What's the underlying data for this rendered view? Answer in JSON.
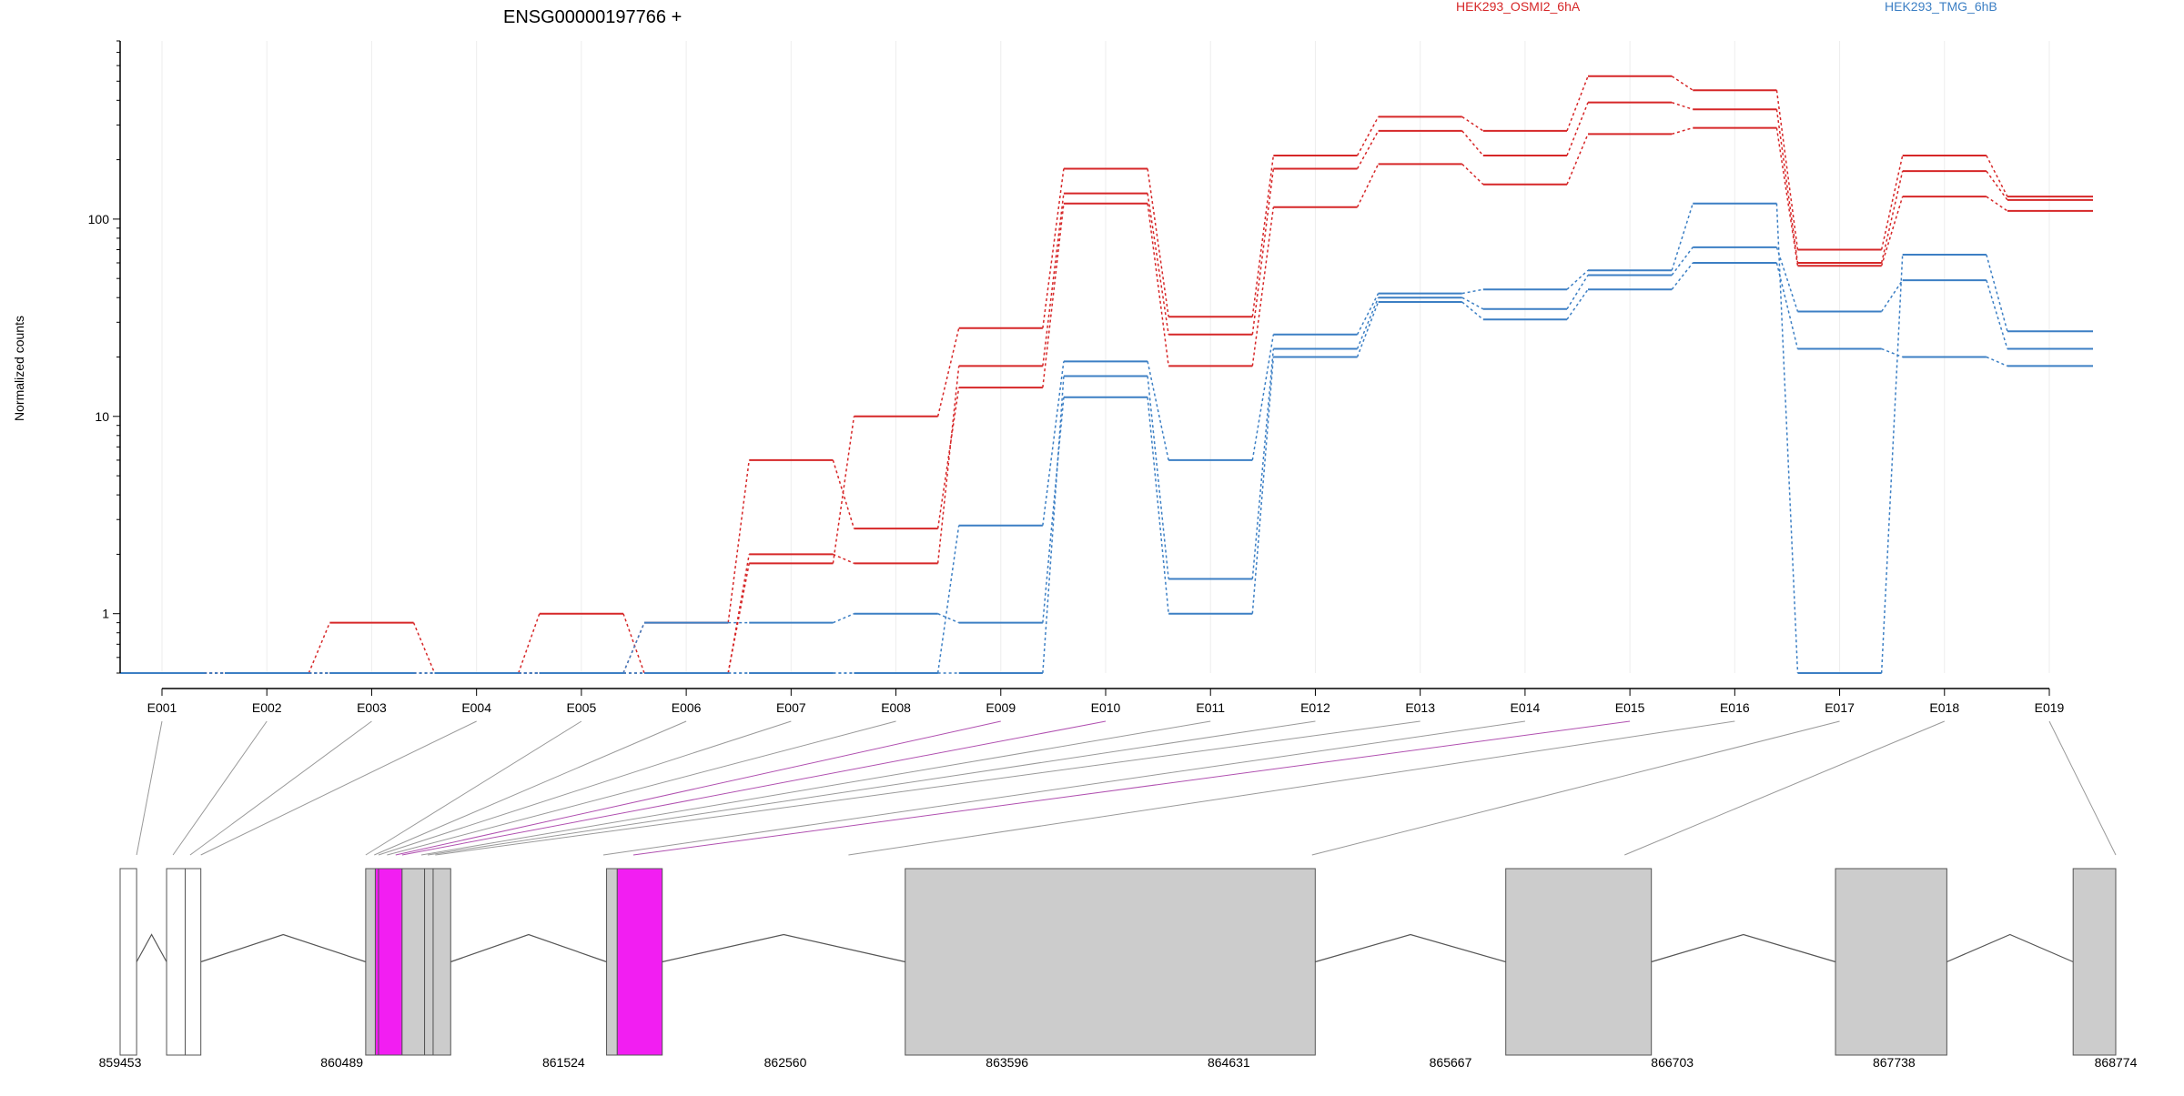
{
  "chart_data": {
    "type": "line",
    "title": "ENSG00000197766 +",
    "ylabel": "Normalized counts",
    "yscale": "log",
    "ylim": [
      0.5,
      800
    ],
    "yticks": [
      1,
      10,
      100
    ],
    "ytick_labels": [
      "1",
      "10",
      "100"
    ],
    "grid": "vertical",
    "legend_placement": "top",
    "colors": {
      "OSMI2": "#d62728",
      "TMG": "#3c7fc4",
      "highlight_exon": "#f21ef2",
      "exon": "#cccccc",
      "link": "#999999",
      "highlight_link": "#b050b0"
    },
    "categories": [
      "E001",
      "E002",
      "E003",
      "E004",
      "E005",
      "E006",
      "E007",
      "E008",
      "E009",
      "E010",
      "E011",
      "E012",
      "E013",
      "E014",
      "E015",
      "E016",
      "E017",
      "E018",
      "E019"
    ],
    "series": [
      {
        "name": "HEK293_OSMI2_6hA",
        "group": "OSMI2",
        "values": [
          0.5,
          0.5,
          0.9,
          0.5,
          0.5,
          0.9,
          6,
          2.7,
          14,
          120,
          18,
          115,
          190,
          150,
          270,
          290,
          58,
          130,
          110
        ]
      },
      {
        "name": "HEK293_OSMI2_6hA",
        "group": "OSMI2",
        "values": [
          0.5,
          0.5,
          0.5,
          0.5,
          1,
          0.5,
          2,
          1.8,
          18,
          135,
          26,
          180,
          280,
          210,
          390,
          360,
          60,
          175,
          125
        ]
      },
      {
        "name": "HEK293_OSMI2_6hA",
        "group": "OSMI2",
        "values": [
          0.5,
          0.5,
          0.5,
          0.5,
          0.5,
          0.5,
          1.8,
          10,
          28,
          180,
          32,
          210,
          330,
          280,
          530,
          450,
          70,
          210,
          130
        ]
      },
      {
        "name": "HEK293_TMG_6hB",
        "group": "TMG",
        "values": [
          0.5,
          0.5,
          0.5,
          0.5,
          0.5,
          0.9,
          0.9,
          1.0,
          0.9,
          12.5,
          1.0,
          20,
          38,
          31,
          44,
          60,
          22,
          20,
          18
        ]
      },
      {
        "name": "HEK293_TMG_6hB",
        "group": "TMG",
        "values": [
          0.5,
          0.5,
          0.5,
          0.5,
          0.5,
          0.5,
          0.5,
          0.5,
          0.5,
          16,
          1.5,
          22,
          40,
          35,
          52,
          72,
          34,
          49,
          22
        ]
      },
      {
        "name": "HEK293_TMG_6hB",
        "group": "TMG",
        "values": [
          0.5,
          0.5,
          0.5,
          0.5,
          0.5,
          0.5,
          0.5,
          0.5,
          2.8,
          19,
          6,
          26,
          42,
          44,
          55,
          120,
          0.5,
          66,
          27
        ]
      }
    ],
    "legend": [
      {
        "label": "HEK293_OSMI2_6hA",
        "color": "#d62728"
      },
      {
        "label": "HEK293_TMG_6hB",
        "color": "#3c7fc4"
      }
    ],
    "gene_model": {
      "coord_labels": [
        "859453",
        "860489",
        "861524",
        "862560",
        "863596",
        "864631",
        "865667",
        "866703",
        "867738",
        "868774"
      ],
      "coord_range": [
        859453,
        868774
      ],
      "exon_blocks": [
        {
          "start": 859453,
          "end": 859530,
          "fill": "white"
        },
        {
          "start": 859670,
          "end": 859757,
          "fill": "white"
        },
        {
          "start": 859757,
          "end": 859830,
          "fill": "white"
        },
        {
          "start": 860600,
          "end": 860645,
          "fill": "exon"
        },
        {
          "start": 860645,
          "end": 860660,
          "fill": "highlight"
        },
        {
          "start": 860660,
          "end": 860770,
          "fill": "highlight"
        },
        {
          "start": 860770,
          "end": 860875,
          "fill": "exon"
        },
        {
          "start": 860875,
          "end": 860915,
          "fill": "exon"
        },
        {
          "start": 860915,
          "end": 860997,
          "fill": "exon"
        },
        {
          "start": 861725,
          "end": 861775,
          "fill": "exon"
        },
        {
          "start": 861775,
          "end": 861985,
          "fill": "highlight"
        },
        {
          "start": 863120,
          "end": 865035,
          "fill": "exon"
        },
        {
          "start": 865925,
          "end": 866605,
          "fill": "exon"
        },
        {
          "start": 867465,
          "end": 867985,
          "fill": "exon"
        },
        {
          "start": 868575,
          "end": 868774,
          "fill": "exon"
        }
      ],
      "exon_bin_positions": [
        859530,
        859700,
        859780,
        859830,
        860600,
        860640,
        860660,
        860700,
        860740,
        860770,
        860860,
        860890,
        860925,
        861710,
        861850,
        862855,
        865020,
        866480,
        868774
      ],
      "highlighted_bins": [
        "E009",
        "E010",
        "E015"
      ]
    }
  }
}
